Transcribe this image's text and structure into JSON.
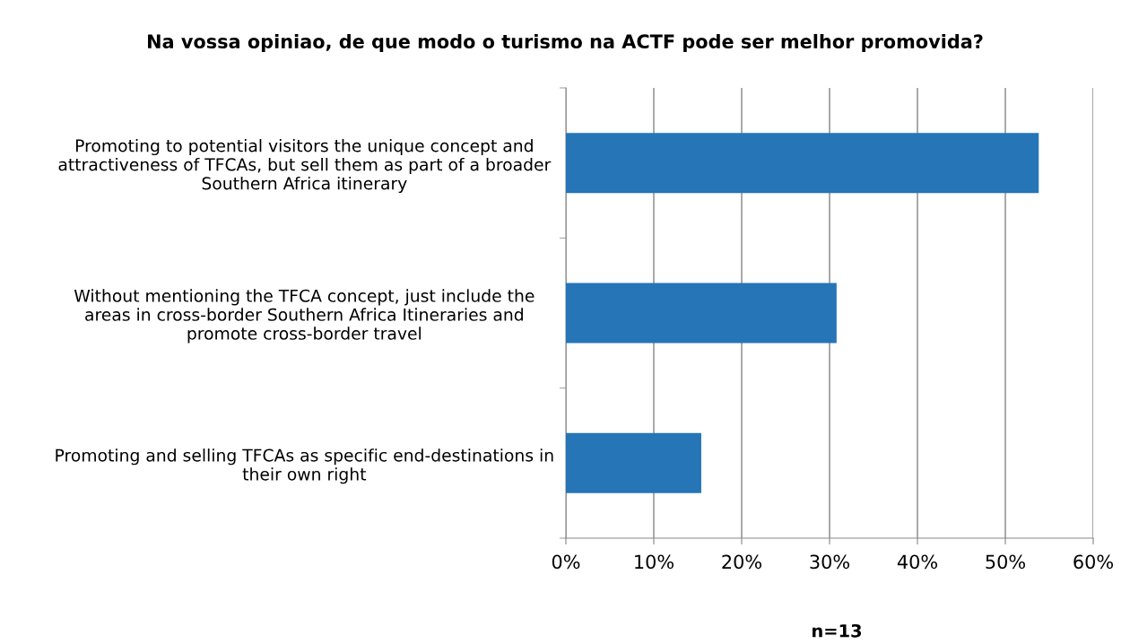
{
  "chart_data": {
    "type": "bar",
    "orientation": "horizontal",
    "title": "Na vossa opiniao, de que modo o turismo na ACTF pode ser melhor promovida?",
    "categories": [
      "Promoting to potential visitors the unique concept and\nattractiveness of TFCAs, but sell them as part of a broader\nSouthern Africa itinerary",
      "Without mentioning the TFCA concept, just include the\nareas in cross-border Southern Africa Itineraries and\npromote cross-border travel",
      "Promoting and selling TFCAs as specific end-destinations in\ntheir own right"
    ],
    "values": [
      53.8,
      30.8,
      15.4
    ],
    "color": "#2575b7",
    "xlim": [
      0,
      60
    ],
    "xticks": [
      {
        "value": 0,
        "label": "0%"
      },
      {
        "value": 10,
        "label": "10%"
      },
      {
        "value": 20,
        "label": "20%"
      },
      {
        "value": 30,
        "label": "30%"
      },
      {
        "value": 40,
        "label": "40%"
      },
      {
        "value": 50,
        "label": "50%"
      },
      {
        "value": 60,
        "label": "60%"
      }
    ],
    "grid": "x",
    "annotations": [
      "n=13"
    ]
  }
}
